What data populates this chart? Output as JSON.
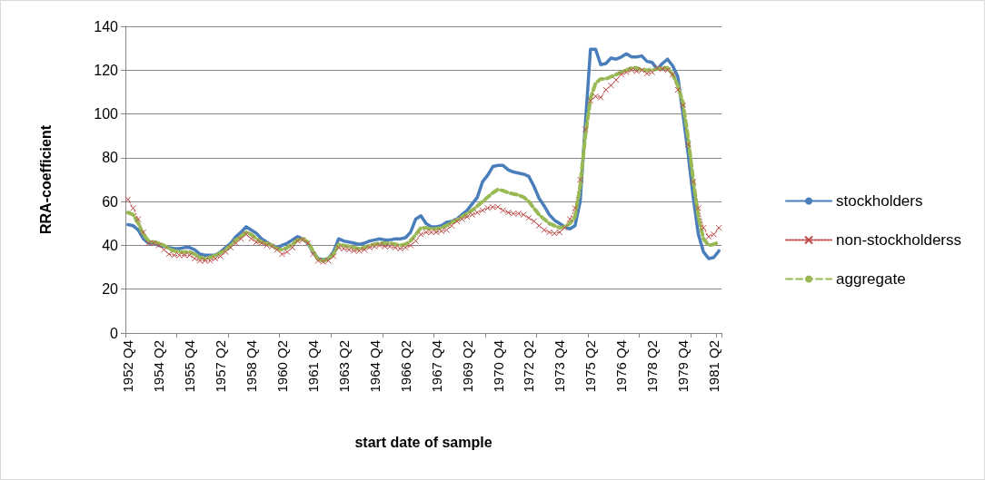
{
  "chart_data": {
    "type": "line",
    "xlabel": "start date of sample",
    "ylabel": "RRA-coefficient",
    "categories": [
      "1952 Q4",
      null,
      null,
      null,
      null,
      null,
      "1954 Q2",
      null,
      null,
      null,
      null,
      null,
      "1955 Q4",
      null,
      null,
      null,
      null,
      null,
      "1957 Q2",
      null,
      null,
      null,
      null,
      null,
      "1958 Q4",
      null,
      null,
      null,
      null,
      null,
      "1960 Q2",
      null,
      null,
      null,
      null,
      null,
      "1961 Q4",
      null,
      null,
      null,
      null,
      null,
      "1963 Q2",
      null,
      null,
      null,
      null,
      null,
      "1964 Q4",
      null,
      null,
      null,
      null,
      null,
      "1966 Q2",
      null,
      null,
      null,
      null,
      null,
      "1967 Q4",
      null,
      null,
      null,
      null,
      null,
      "1969 Q2",
      null,
      null,
      null,
      null,
      null,
      "1970 Q4",
      null,
      null,
      null,
      null,
      null,
      "1972 Q2",
      null,
      null,
      null,
      null,
      null,
      "1973 Q4",
      null,
      null,
      null,
      null,
      null,
      "1975 Q2",
      null,
      null,
      null,
      null,
      null,
      "1976 Q4",
      null,
      null,
      null,
      null,
      null,
      "1978 Q2",
      null,
      null,
      null,
      null,
      null,
      "1979 Q4",
      null,
      null,
      null,
      null,
      null,
      "1981 Q2",
      null
    ],
    "series": [
      {
        "name": "stockholders",
        "color": "#4a7ebb",
        "line_style": "solid",
        "marker": "none",
        "values": [
          49.5,
          49,
          47,
          43,
          41,
          41,
          40,
          39.5,
          39,
          38.5,
          38.5,
          39,
          39,
          38,
          36,
          35.5,
          35.5,
          35.5,
          37,
          39,
          41,
          44,
          46,
          48.5,
          47,
          45.5,
          43,
          41.5,
          40,
          39,
          40,
          41,
          42.5,
          44,
          43,
          41,
          37,
          34,
          33.5,
          34,
          37,
          43,
          42,
          41.5,
          41,
          40.5,
          41,
          42,
          42.5,
          43,
          42.5,
          42.5,
          43,
          43,
          43.5,
          46,
          52,
          53.5,
          50,
          48.5,
          48.5,
          49,
          50.5,
          51,
          52,
          54,
          56,
          59,
          62,
          69,
          72,
          76,
          76.5,
          76.5,
          74.5,
          73.5,
          73,
          72.5,
          71.5,
          67,
          61.5,
          58,
          54,
          51.5,
          50,
          48.5,
          47.5,
          49,
          60,
          95,
          129.5,
          129.5,
          122.5,
          123,
          125.5,
          125,
          126,
          127.5,
          126,
          126,
          126.5,
          124,
          123.5,
          120.5,
          123,
          125,
          122,
          117,
          100,
          82,
          62,
          45,
          37,
          34,
          34.5,
          37.5
        ]
      },
      {
        "name": "non-stockholderss",
        "color": "#be4b48",
        "line_style": "dotted",
        "marker": "cross",
        "values": [
          61,
          57,
          52,
          46,
          41,
          41,
          40,
          38,
          36,
          35.5,
          35.5,
          35.5,
          35.5,
          34,
          33,
          33,
          33,
          34,
          35,
          37,
          39,
          41,
          43,
          45,
          43,
          41.5,
          41,
          40,
          39.5,
          38,
          36,
          37,
          39,
          42,
          42.5,
          41,
          36,
          33,
          32.5,
          33,
          35,
          39,
          38.5,
          38,
          37.5,
          37.5,
          38,
          39,
          39.5,
          40,
          39.5,
          39.5,
          39,
          38.5,
          39,
          40,
          42,
          45,
          46,
          46,
          46,
          46.5,
          47,
          49,
          51,
          52,
          53,
          54,
          55,
          56,
          57,
          57.5,
          57.5,
          56,
          55,
          54.5,
          54.5,
          54,
          52.5,
          51,
          49,
          47,
          46,
          45.5,
          46,
          48,
          52,
          57,
          70,
          93,
          106,
          108,
          107.5,
          111,
          113,
          115.5,
          118,
          119,
          120,
          119.5,
          120,
          118.5,
          119,
          121,
          120.5,
          120,
          118,
          111,
          104,
          86,
          69,
          57,
          48,
          44,
          45,
          48
        ]
      },
      {
        "name": "aggregate",
        "color": "#98b954",
        "line_style": "dashed",
        "marker": "none",
        "values": [
          55,
          54,
          50,
          45,
          42,
          41.5,
          41,
          40,
          38.5,
          37.5,
          37,
          37,
          37,
          36,
          34.5,
          34,
          34.5,
          35.5,
          36.5,
          38,
          40,
          42.5,
          44,
          46,
          45,
          43,
          41.5,
          41,
          40,
          38.5,
          38,
          39,
          40.5,
          42.5,
          43,
          41.5,
          37.5,
          33.5,
          33,
          34,
          36,
          40.5,
          40,
          39.5,
          39,
          38.5,
          39,
          40,
          40.5,
          41,
          41,
          41,
          40.5,
          40,
          40.5,
          42,
          45,
          48,
          48,
          47.5,
          47.5,
          48,
          49,
          50.5,
          51.5,
          53,
          54.5,
          56,
          58,
          60,
          62,
          64,
          65.5,
          65,
          64,
          63.5,
          63,
          62,
          60,
          57,
          54,
          52,
          50,
          49,
          48,
          48.5,
          50,
          53,
          67,
          90,
          107,
          114,
          116,
          116,
          117,
          118,
          119,
          120,
          121,
          121,
          120,
          120,
          120,
          120.5,
          121,
          121,
          118,
          113,
          105,
          89,
          70,
          53,
          43,
          40,
          40.5,
          41.5
        ]
      }
    ],
    "ylim": [
      0,
      140
    ],
    "yticks": [
      0,
      20,
      40,
      60,
      80,
      100,
      120,
      140
    ],
    "grid": "y",
    "legend": "right"
  }
}
